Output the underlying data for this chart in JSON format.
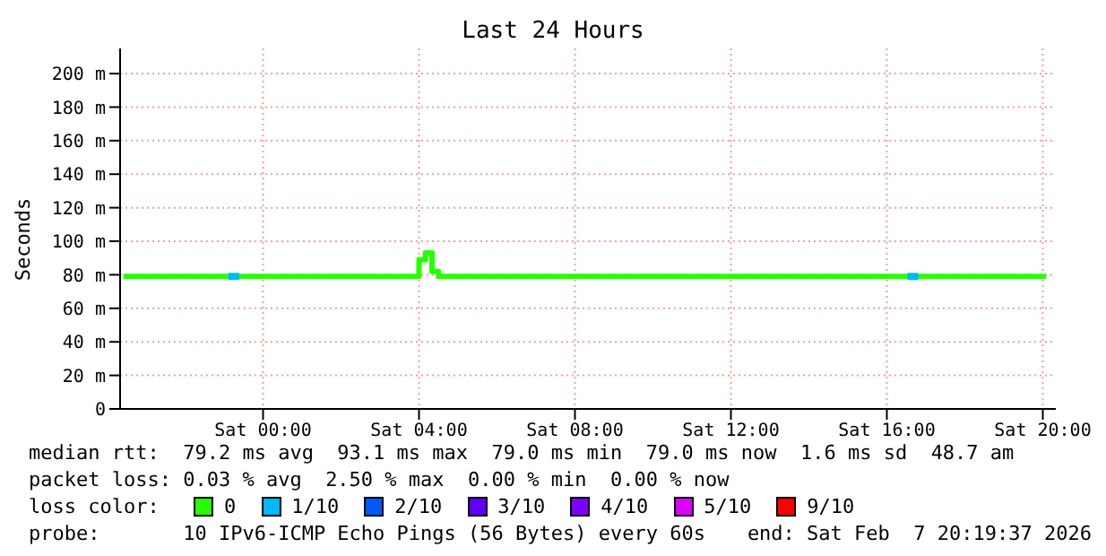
{
  "chart_data": {
    "type": "step",
    "title": "Last 24 Hours",
    "ylabel": "Seconds",
    "xlim": [
      "2026-02-06T20:20",
      "2026-02-07T20:20"
    ],
    "xticks": [
      {
        "value": "2026-02-07T00:00",
        "label": "Sat 00:00"
      },
      {
        "value": "2026-02-07T04:00",
        "label": "Sat 04:00"
      },
      {
        "value": "2026-02-07T08:00",
        "label": "Sat 08:00"
      },
      {
        "value": "2026-02-07T12:00",
        "label": "Sat 12:00"
      },
      {
        "value": "2026-02-07T16:00",
        "label": "Sat 16:00"
      },
      {
        "value": "2026-02-07T20:00",
        "label": "Sat 20:00"
      }
    ],
    "ylim": [
      0,
      215
    ],
    "yticks": [
      0,
      {
        "value": 20,
        "label": "20 m"
      },
      {
        "value": 40,
        "label": "40 m"
      },
      {
        "value": 60,
        "label": "60 m"
      },
      {
        "value": 80,
        "label": "80 m"
      },
      {
        "value": 100,
        "label": "100 m"
      },
      {
        "value": 120,
        "label": "120 m"
      },
      {
        "value": 140,
        "label": "140 m"
      },
      {
        "value": 160,
        "label": "160 m"
      },
      {
        "value": 180,
        "label": "180 m"
      },
      {
        "value": 200,
        "label": "200 m"
      }
    ],
    "grid": true,
    "legend": "bottom",
    "legend_title": "loss color:",
    "series": [
      {
        "name": "0",
        "color": "#26ff00",
        "x": [
          "2026-02-06T20:25",
          "2026-02-07T04:00",
          "2026-02-07T04:10",
          "2026-02-07T04:20",
          "2026-02-07T04:30",
          "2026-02-07T20:05"
        ],
        "values": [
          79,
          89,
          93,
          82,
          79,
          79
        ]
      },
      {
        "name": "1/10",
        "color": "#00b8ff",
        "type": "scatter",
        "marker": "square",
        "x": [
          "2026-02-06T23:15",
          "2026-02-07T16:40"
        ],
        "values": [
          79,
          79
        ]
      },
      {
        "name": "2/10",
        "color": "#0059ff",
        "type": "scatter",
        "marker": "square"
      },
      {
        "name": "3/10",
        "color": "#5e00ff",
        "type": "scatter",
        "marker": "square"
      },
      {
        "name": "4/10",
        "color": "#7e00ff",
        "type": "scatter",
        "marker": "square"
      },
      {
        "name": "5/10",
        "color": "#dd00ff",
        "type": "scatter",
        "marker": "square"
      },
      {
        "name": "9/10",
        "color": "#ff0000",
        "type": "scatter",
        "marker": "square"
      }
    ],
    "annotations": [
      "median rtt:  79.2 ms avg  93.1 ms max  79.0 ms min  79.0 ms now  1.6 ms sd  48.7 am",
      "packet loss: 0.03 % avg  2.50 % max  0.00 % min  0.00 % now",
      "probe:       10 IPv6-ICMP Echo Pings (56 Bytes) every 60s",
      "end: Sat Feb  7 20:19:37 2026"
    ]
  }
}
